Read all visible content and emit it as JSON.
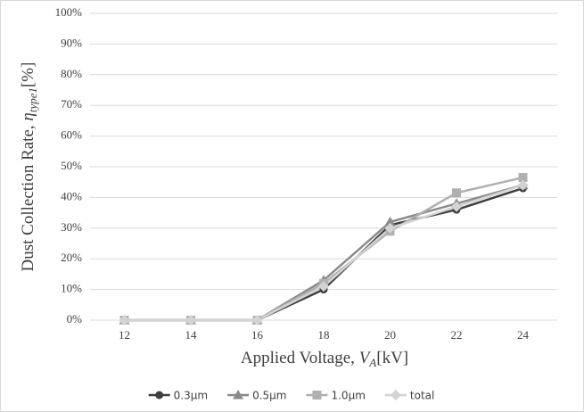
{
  "chart_data": {
    "type": "line",
    "categories": [
      "12",
      "14",
      "16",
      "18",
      "20",
      "22",
      "24"
    ],
    "series": [
      {
        "name": "0.3μm",
        "color": "#3f3f3f",
        "marker": "circle",
        "values": [
          0,
          0,
          0,
          10,
          31,
          36,
          43
        ]
      },
      {
        "name": "0.5μm",
        "color": "#8a8a8a",
        "marker": "triangle",
        "values": [
          0,
          0,
          0,
          13,
          32,
          38,
          44
        ]
      },
      {
        "name": "1.0μm",
        "color": "#b0b0b0",
        "marker": "square",
        "values": [
          0,
          0,
          0,
          12,
          29,
          41.5,
          46.5
        ]
      },
      {
        "name": "total",
        "color": "#d3d3d3",
        "marker": "diamond",
        "values": [
          0,
          0,
          0,
          11,
          30,
          37,
          44
        ]
      }
    ],
    "ylim": [
      0,
      100
    ],
    "yticks": [
      {
        "value": 0,
        "label": "0%"
      },
      {
        "value": 10,
        "label": "10%"
      },
      {
        "value": 20,
        "label": "20%"
      },
      {
        "value": 30,
        "label": "30%"
      },
      {
        "value": 40,
        "label": "40%"
      },
      {
        "value": 50,
        "label": "50%"
      },
      {
        "value": 60,
        "label": "60%"
      },
      {
        "value": 70,
        "label": "70%"
      },
      {
        "value": 80,
        "label": "80%"
      },
      {
        "value": 90,
        "label": "90%"
      },
      {
        "value": 100,
        "label": "100%"
      }
    ],
    "xlabel": {
      "main": "Applied Voltage,  ",
      "var": "V",
      "sub": "A",
      "unit": "[kV]"
    },
    "ylabel": {
      "main": "Dust Collection Rate,  ",
      "var": "η",
      "sub": "type1",
      "unit": "[%]"
    },
    "grid": true,
    "legend": "bottom"
  }
}
